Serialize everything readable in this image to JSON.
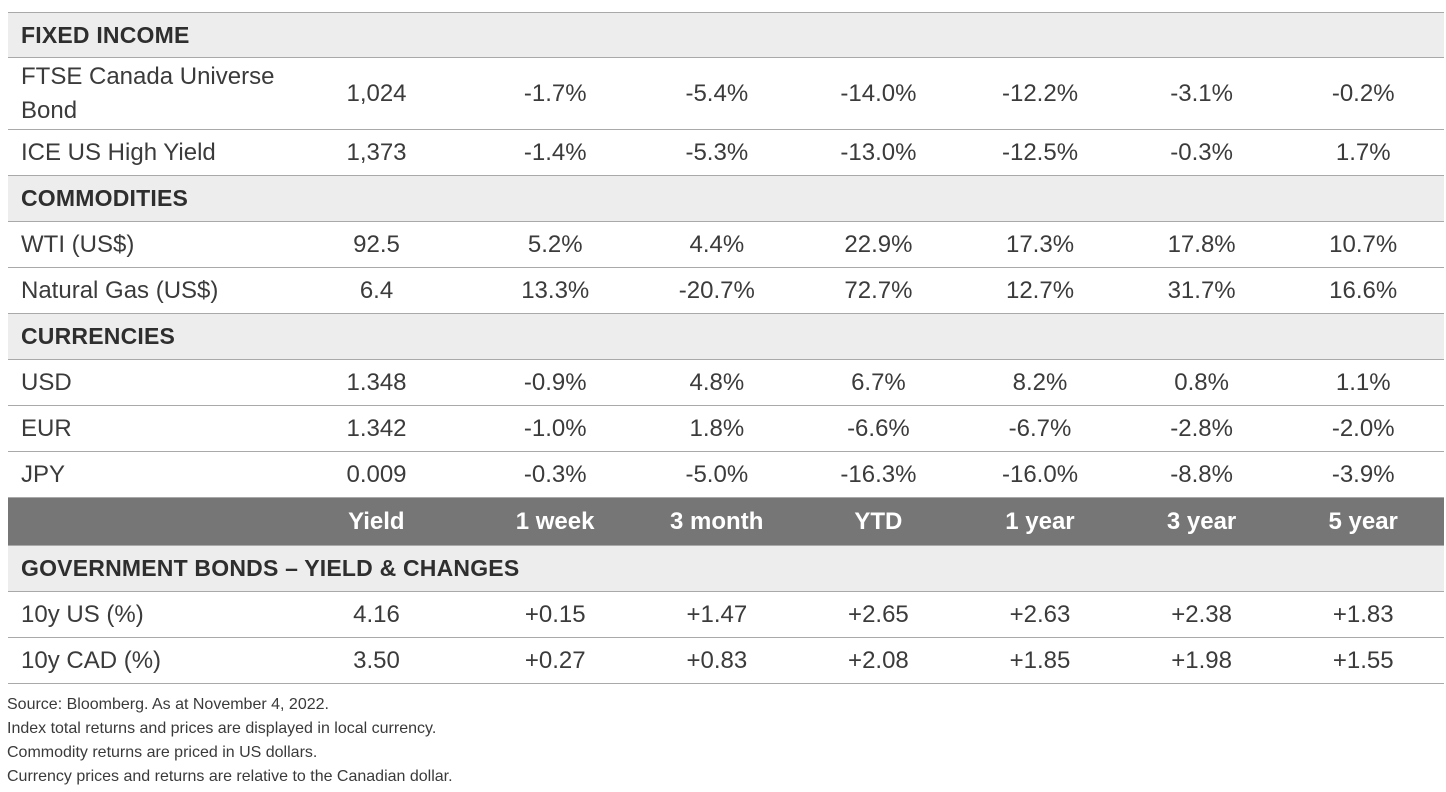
{
  "fixed_income": {
    "title": "FIXED INCOME",
    "rows": [
      {
        "label": "FTSE Canada Universe Bond",
        "values": [
          "1,024",
          "-1.7%",
          "-5.4%",
          "-14.0%",
          "-12.2%",
          "-3.1%",
          "-0.2%"
        ]
      },
      {
        "label": "ICE US High Yield",
        "values": [
          "1,373",
          "-1.4%",
          "-5.3%",
          "-13.0%",
          "-12.5%",
          "-0.3%",
          "1.7%"
        ]
      }
    ]
  },
  "commodities": {
    "title": "COMMODITIES",
    "rows": [
      {
        "label": "WTI (US$)",
        "values": [
          "92.5",
          "5.2%",
          "4.4%",
          "22.9%",
          "17.3%",
          "17.8%",
          "10.7%"
        ]
      },
      {
        "label": "Natural Gas (US$)",
        "values": [
          "6.4",
          "13.3%",
          "-20.7%",
          "72.7%",
          "12.7%",
          "31.7%",
          "16.6%"
        ]
      }
    ]
  },
  "currencies": {
    "title": "CURRENCIES",
    "rows": [
      {
        "label": "USD",
        "values": [
          "1.348",
          "-0.9%",
          "4.8%",
          "6.7%",
          "8.2%",
          "0.8%",
          "1.1%"
        ]
      },
      {
        "label": "EUR",
        "values": [
          "1.342",
          "-1.0%",
          "1.8%",
          "-6.6%",
          "-6.7%",
          "-2.8%",
          "-2.0%"
        ]
      },
      {
        "label": "JPY",
        "values": [
          "0.009",
          "-0.3%",
          "-5.0%",
          "-16.3%",
          "-16.0%",
          "-8.8%",
          "-3.9%"
        ]
      }
    ]
  },
  "bond_header": {
    "columns": [
      "Yield",
      "1 week",
      "3 month",
      "YTD",
      "1 year",
      "3 year",
      "5 year"
    ]
  },
  "government_bonds": {
    "title": "GOVERNMENT BONDS – YIELD & CHANGES",
    "rows": [
      {
        "label": "10y US (%)",
        "values": [
          "4.16",
          "+0.15",
          "+1.47",
          "+2.65",
          "+2.63",
          "+2.38",
          "+1.83"
        ]
      },
      {
        "label": "10y CAD (%)",
        "values": [
          "3.50",
          "+0.27",
          "+0.83",
          "+2.08",
          "+1.85",
          "+1.98",
          "+1.55"
        ]
      }
    ]
  },
  "notes": [
    "Source: Bloomberg. As at November 4, 2022.",
    "Index total returns and prices are displayed in local currency.",
    "Commodity returns are priced in US dollars.",
    "Currency prices and returns are relative to the Canadian dollar."
  ],
  "colors": {
    "section_background": "#ededed",
    "header_background": "#767676",
    "rule": "#a9a9a9"
  }
}
